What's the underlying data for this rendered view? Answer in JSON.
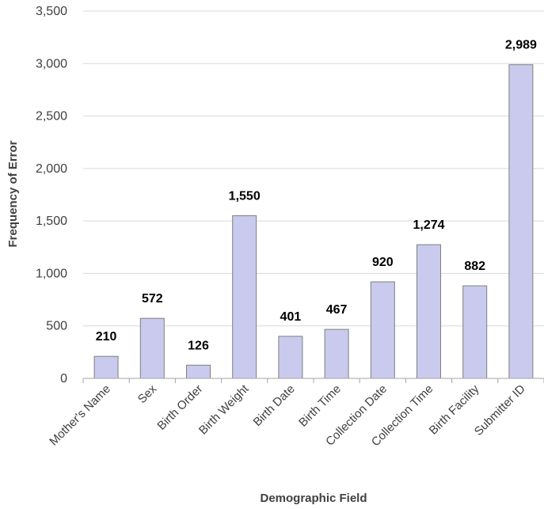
{
  "chart_data": {
    "type": "bar",
    "title": "",
    "xlabel": "Demographic Field",
    "ylabel": "Frequency  of Error",
    "categories": [
      "Mother's Name",
      "Sex",
      "Birth Order",
      "Birth Weight",
      "Birth Date",
      "Birth Time",
      "Collection Date",
      "Collection Time",
      "Birth Facility",
      "Submitter ID"
    ],
    "values": [
      210,
      572,
      126,
      1550,
      401,
      467,
      920,
      1274,
      882,
      2989
    ],
    "data_labels": [
      "210",
      "572",
      "126",
      "1,550",
      "401",
      "467",
      "920",
      "1,274",
      "882",
      "2,989"
    ],
    "yticks": [
      0,
      500,
      1000,
      1500,
      2000,
      2500,
      3000,
      3500
    ],
    "ytick_labels": [
      "0",
      "500",
      "1,000",
      "1,500",
      "2,000",
      "2,500",
      "3,000",
      "3,500"
    ],
    "ylim": [
      0,
      3500
    ],
    "grid": true,
    "legend": "none",
    "colors": {
      "bar_fill": "#c9caee",
      "bar_stroke": "#7f7f7f",
      "grid": "#d9d9d9"
    }
  }
}
